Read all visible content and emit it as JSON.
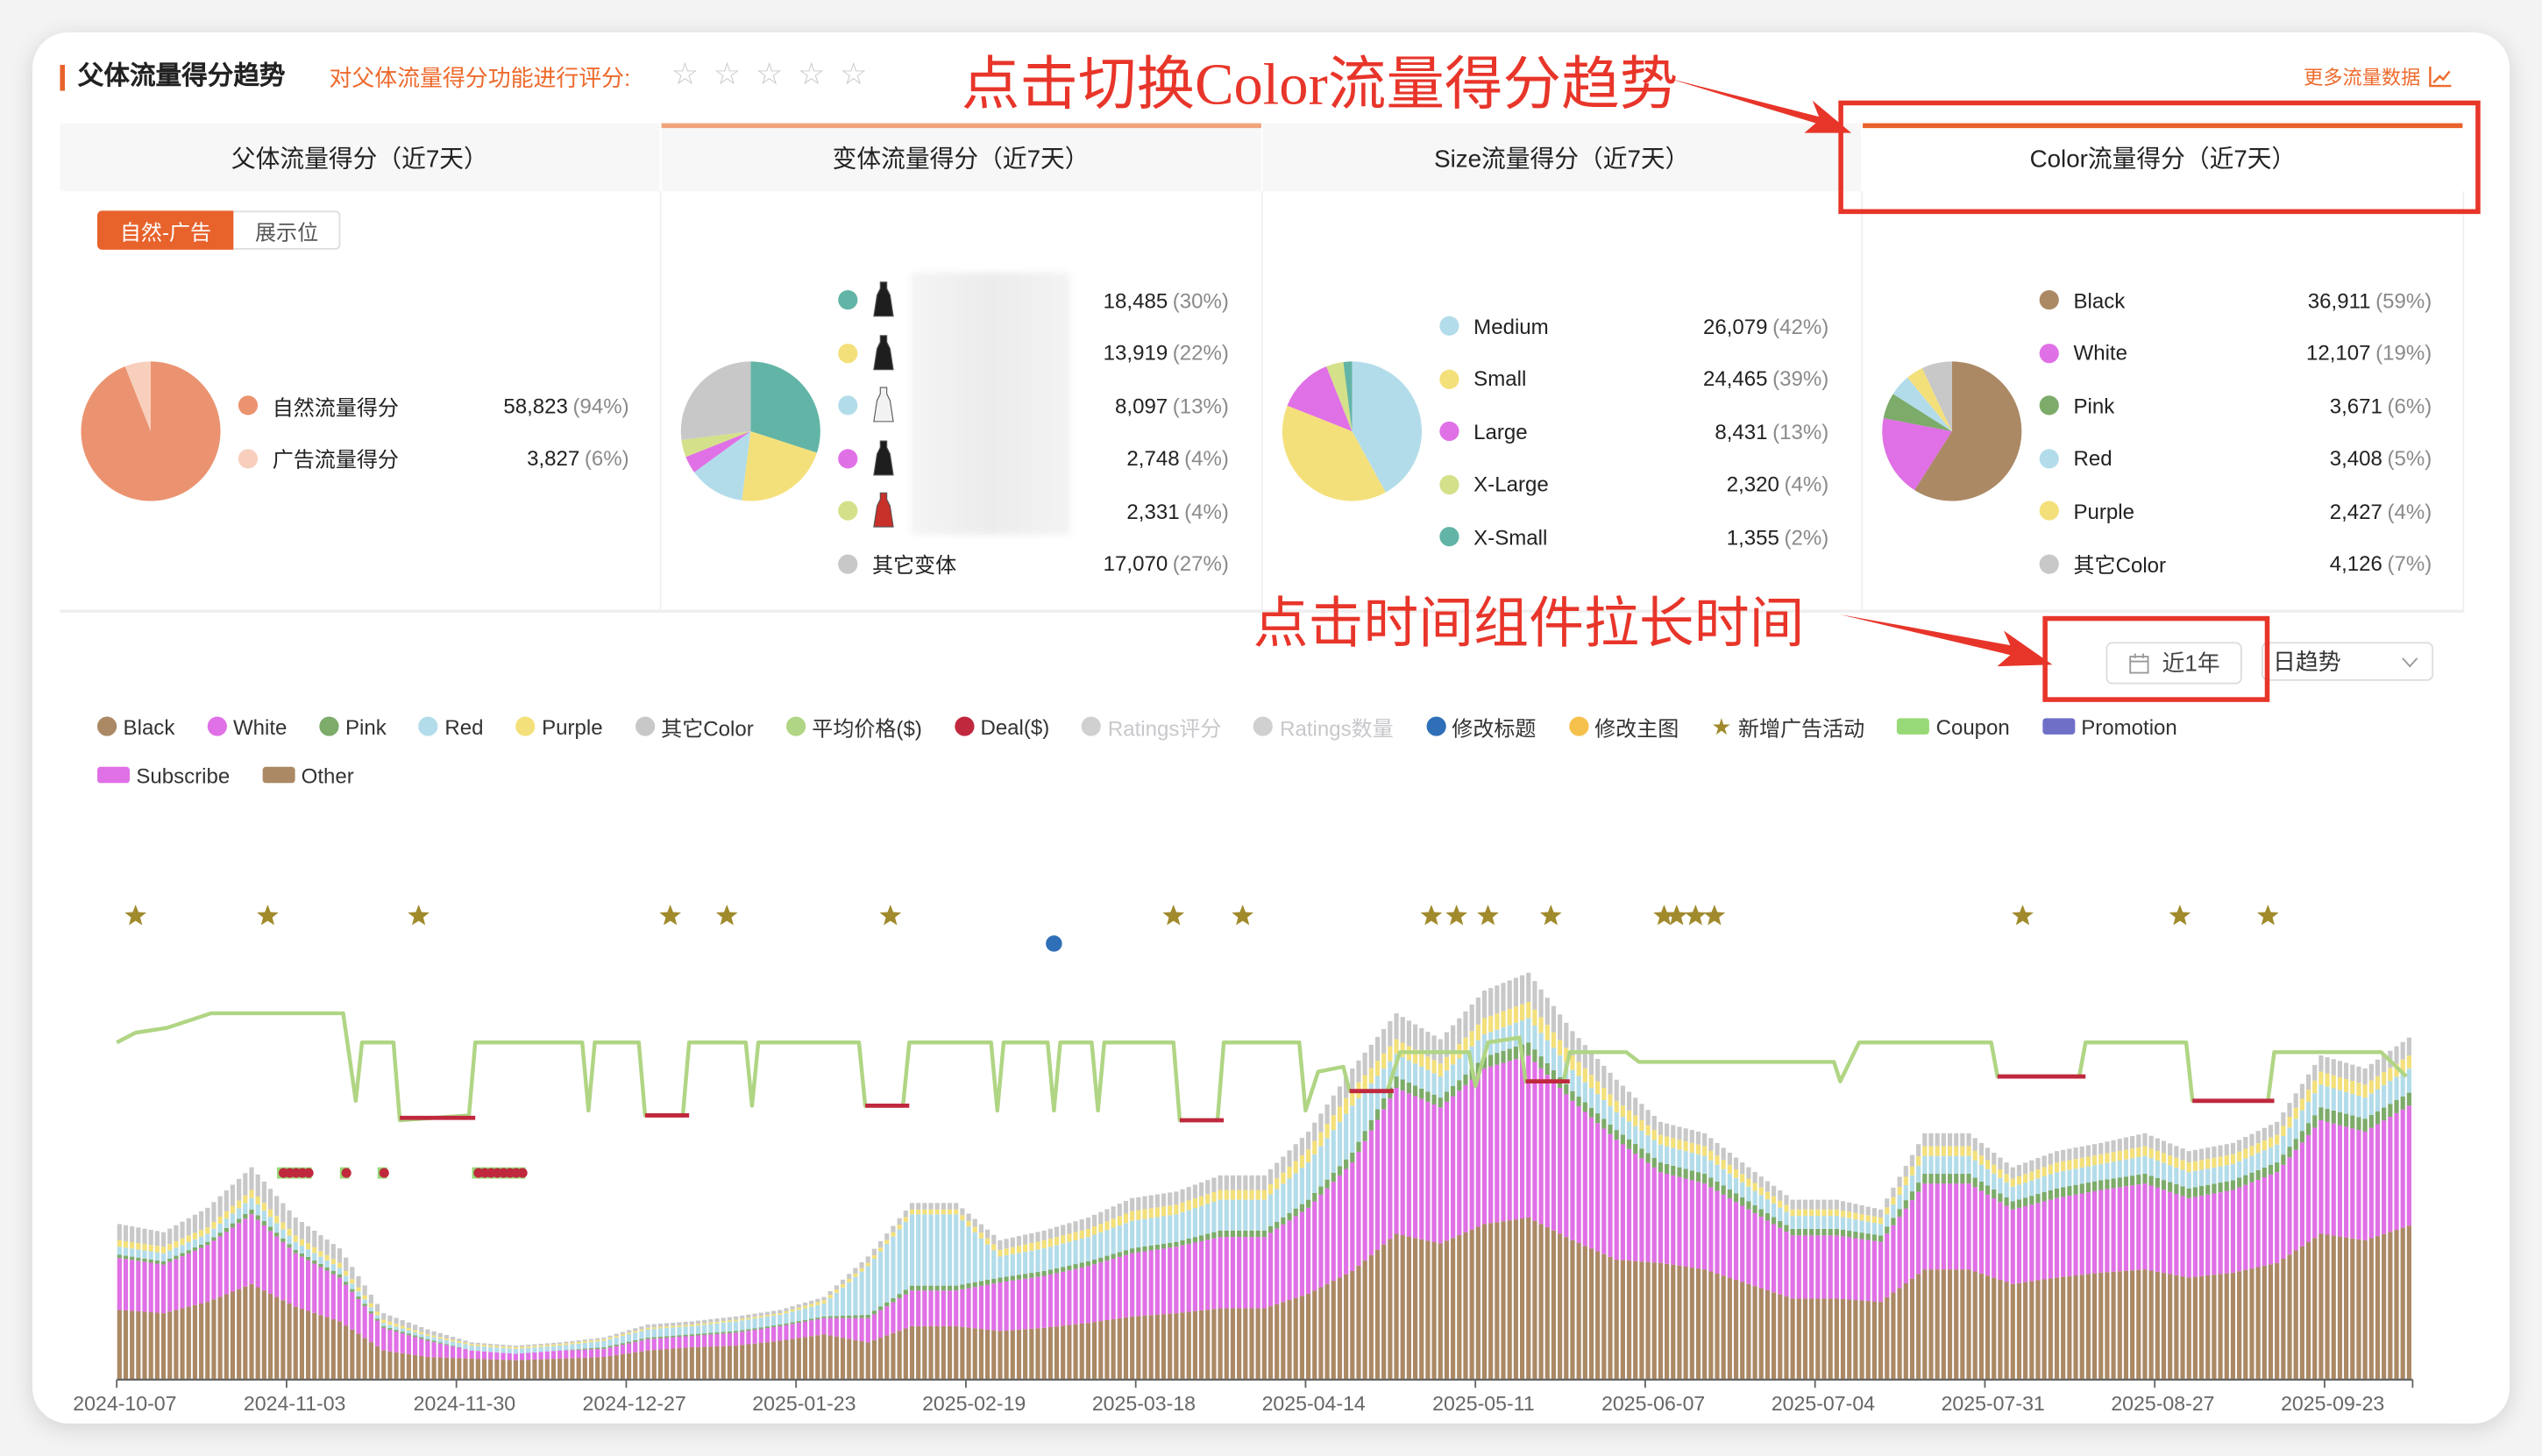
{
  "header": {
    "title": "父体流量得分趋势",
    "rating_prompt": "对父体流量得分功能进行评分:",
    "rating_stars": [
      "☆",
      "☆",
      "☆",
      "☆",
      "☆"
    ],
    "rating_value": 0,
    "more_link": "更多流量数据"
  },
  "tabs": [
    {
      "label": "父体流量得分（近7天）"
    },
    {
      "label": "变体流量得分（近7天）"
    },
    {
      "label": "Size流量得分（近7天）"
    },
    {
      "label": "Color流量得分（近7天）",
      "active": true
    }
  ],
  "toggle": {
    "options": [
      "自然-广告",
      "展示位"
    ],
    "selected": "自然-广告"
  },
  "panels": {
    "parent": [
      {
        "label": "自然流量得分",
        "value": "58,823",
        "pct": "(94%)",
        "share": 94,
        "color": "#eb9370"
      },
      {
        "label": "广告流量得分",
        "value": "3,827",
        "pct": "(6%)",
        "share": 6,
        "color": "#f8cfbd"
      }
    ],
    "variant": [
      {
        "label": "",
        "value": "18,485",
        "pct": "(30%)",
        "share": 30,
        "color": "#62b5a6",
        "thumb": "#1e1e1e"
      },
      {
        "label": "",
        "value": "13,919",
        "pct": "(22%)",
        "share": 22,
        "color": "#f4e07b",
        "thumb": "#1e1e1e"
      },
      {
        "label": "",
        "value": "8,097",
        "pct": "(13%)",
        "share": 13,
        "color": "#b3dcea",
        "thumb": "#f2f2f2"
      },
      {
        "label": "",
        "value": "2,748",
        "pct": "(4%)",
        "share": 4,
        "color": "#e070e6",
        "thumb": "#1e1e1e"
      },
      {
        "label": "",
        "value": "2,331",
        "pct": "(4%)",
        "share": 4,
        "color": "#d5e08a",
        "thumb": "#c8302a"
      },
      {
        "label": "其它变体",
        "value": "17,070",
        "pct": "(27%)",
        "share": 27,
        "color": "#c8c8c8"
      }
    ],
    "size": [
      {
        "label": "Medium",
        "value": "26,079",
        "pct": "(42%)",
        "share": 42,
        "color": "#b3dcea"
      },
      {
        "label": "Small",
        "value": "24,465",
        "pct": "(39%)",
        "share": 39,
        "color": "#f4e07b"
      },
      {
        "label": "Large",
        "value": "8,431",
        "pct": "(13%)",
        "share": 13,
        "color": "#e070e6"
      },
      {
        "label": "X-Large",
        "value": "2,320",
        "pct": "(4%)",
        "share": 4,
        "color": "#d5e08a"
      },
      {
        "label": "X-Small",
        "value": "1,355",
        "pct": "(2%)",
        "share": 2,
        "color": "#62b5a6"
      }
    ],
    "color": [
      {
        "label": "Black",
        "value": "36,911",
        "pct": "(59%)",
        "share": 59,
        "color": "#ab8965"
      },
      {
        "label": "White",
        "value": "12,107",
        "pct": "(19%)",
        "share": 19,
        "color": "#e070e6"
      },
      {
        "label": "Pink",
        "value": "3,671",
        "pct": "(6%)",
        "share": 6,
        "color": "#7dab6a"
      },
      {
        "label": "Red",
        "value": "3,408",
        "pct": "(5%)",
        "share": 5,
        "color": "#b3dcea"
      },
      {
        "label": "Purple",
        "value": "2,427",
        "pct": "(4%)",
        "share": 4,
        "color": "#f4e07b"
      },
      {
        "label": "其它Color",
        "value": "4,126",
        "pct": "(7%)",
        "share": 7,
        "color": "#c8c8c8"
      }
    ]
  },
  "annotations": {
    "switch_hint": "点击切换Color流量得分趋势",
    "time_hint": "点击时间组件拉长时间",
    "color": "#e8352a"
  },
  "controls": {
    "date_range": "近1年",
    "granularity": "日趋势"
  },
  "chart_legend": [
    {
      "label": "Black",
      "color": "#ab8965",
      "shape": "dot"
    },
    {
      "label": "White",
      "color": "#e070e6",
      "shape": "dot"
    },
    {
      "label": "Pink",
      "color": "#7dab6a",
      "shape": "dot"
    },
    {
      "label": "Red",
      "color": "#b3dcea",
      "shape": "dot"
    },
    {
      "label": "Purple",
      "color": "#f4e07b",
      "shape": "dot"
    },
    {
      "label": "其它Color",
      "color": "#c8c8c8",
      "shape": "dot"
    },
    {
      "label": "平均价格($)",
      "color": "#b0d584",
      "shape": "dot"
    },
    {
      "label": "Deal($)",
      "color": "#c0283e",
      "shape": "dot"
    },
    {
      "label": "Ratings评分",
      "color": "#d0d0d0",
      "shape": "dot",
      "disabled": true
    },
    {
      "label": "Ratings数量",
      "color": "#d0d0d0",
      "shape": "dot",
      "disabled": true
    },
    {
      "label": "修改标题",
      "color": "#2f6fb8",
      "shape": "dot"
    },
    {
      "label": "修改主图",
      "color": "#f5c04c",
      "shape": "dot"
    },
    {
      "label": "新增广告活动",
      "color": "#a08a2c",
      "shape": "star"
    },
    {
      "label": "Coupon",
      "color": "#98d977",
      "shape": "rect"
    },
    {
      "label": "Promotion",
      "color": "#6f6fc8",
      "shape": "rect"
    },
    {
      "label": "Subscribe",
      "color": "#e070e6",
      "shape": "rect"
    },
    {
      "label": "Other",
      "color": "#ab8965",
      "shape": "rect"
    }
  ],
  "chart_data": {
    "type": "bar",
    "stacked": true,
    "granularity": "weekly samples of daily bars",
    "x_start": "2024-10-07",
    "x_end": "2025-10-06",
    "xticks": [
      "2024-10-07",
      "2024-11-03",
      "2024-11-30",
      "2024-12-27",
      "2025-01-23",
      "2025-02-19",
      "2025-03-18",
      "2025-04-14",
      "2025-05-11",
      "2025-06-07",
      "2025-07-04",
      "2025-07-31",
      "2025-08-27",
      "2025-09-23"
    ],
    "ylim": [
      0,
      320
    ],
    "grid": false,
    "legend": "top-left",
    "series": [
      {
        "name": "Black",
        "color": "#ab8965",
        "values": [
          43,
          41,
          48,
          59,
          45,
          36,
          18,
          14,
          13,
          12,
          13,
          14,
          18,
          20,
          21,
          24,
          28,
          23,
          33,
          33,
          30,
          32,
          35,
          39,
          41,
          44,
          44,
          53,
          67,
          90,
          84,
          96,
          100,
          86,
          74,
          72,
          68,
          59,
          50,
          50,
          48,
          68,
          68,
          59,
          63,
          66,
          68,
          63,
          66,
          72,
          90,
          86,
          95
        ]
      },
      {
        "name": "White",
        "color": "#e070e6",
        "values": [
          32,
          30,
          35,
          43,
          33,
          27,
          14,
          10,
          5,
          4,
          5,
          5,
          7,
          7,
          8,
          9,
          10,
          15,
          22,
          22,
          30,
          32,
          35,
          39,
          41,
          44,
          44,
          53,
          67,
          90,
          84,
          96,
          100,
          86,
          74,
          56,
          53,
          46,
          39,
          39,
          37,
          53,
          53,
          46,
          49,
          51,
          53,
          49,
          51,
          56,
          70,
          67,
          74
        ]
      },
      {
        "name": "Pink",
        "color": "#7dab6a",
        "values": [
          2,
          2,
          2,
          3,
          2,
          2,
          1,
          1,
          0,
          0,
          0,
          1,
          1,
          1,
          1,
          1,
          1,
          2,
          3,
          3,
          3,
          3,
          3,
          3,
          3,
          4,
          4,
          5,
          6,
          7,
          6,
          7,
          8,
          6,
          6,
          6,
          6,
          5,
          4,
          4,
          4,
          6,
          6,
          5,
          6,
          6,
          6,
          6,
          6,
          6,
          8,
          8,
          8
        ]
      },
      {
        "name": "Red",
        "color": "#b3dcea",
        "values": [
          5,
          5,
          5,
          7,
          5,
          4,
          2,
          2,
          3,
          3,
          3,
          4,
          5,
          5,
          6,
          6,
          8,
          30,
          44,
          44,
          13,
          14,
          15,
          17,
          17,
          19,
          19,
          23,
          29,
          14,
          13,
          14,
          15,
          13,
          11,
          11,
          11,
          9,
          8,
          8,
          7,
          11,
          11,
          9,
          10,
          10,
          11,
          10,
          10,
          11,
          14,
          13,
          15
        ]
      },
      {
        "name": "Purple",
        "color": "#f4e07b",
        "values": [
          4,
          4,
          4,
          5,
          4,
          3,
          2,
          1,
          1,
          1,
          1,
          1,
          1,
          1,
          1,
          1,
          2,
          2,
          3,
          3,
          4,
          5,
          5,
          6,
          6,
          6,
          6,
          8,
          10,
          9,
          8,
          10,
          10,
          9,
          7,
          6,
          6,
          5,
          4,
          4,
          4,
          6,
          6,
          5,
          6,
          6,
          6,
          6,
          6,
          6,
          8,
          8,
          8
        ]
      },
      {
        "name": "其它Color",
        "color": "#c8c8c8",
        "values": [
          10,
          9,
          12,
          14,
          11,
          9,
          4,
          3,
          1,
          1,
          1,
          1,
          2,
          2,
          2,
          2,
          2,
          4,
          4,
          4,
          6,
          6,
          7,
          8,
          8,
          9,
          9,
          11,
          13,
          16,
          15,
          17,
          18,
          15,
          13,
          8,
          8,
          7,
          6,
          6,
          5,
          8,
          8,
          7,
          7,
          7,
          8,
          7,
          7,
          8,
          10,
          10,
          11
        ]
      }
    ],
    "price_line": {
      "name": "平均价格($)",
      "color": "#b0d584",
      "points": [
        [
          "2024-10-07",
          100
        ],
        [
          "2024-10-10",
          102
        ],
        [
          "2024-10-15",
          103
        ],
        [
          "2024-10-22",
          106
        ],
        [
          "2024-11-12",
          106
        ],
        [
          "2024-11-14",
          88
        ],
        [
          "2024-11-15",
          100
        ],
        [
          "2024-11-20",
          100
        ],
        [
          "2024-11-21",
          84
        ],
        [
          "2024-12-02",
          85
        ],
        [
          "2024-12-03",
          100
        ],
        [
          "2024-12-20",
          100
        ],
        [
          "2024-12-21",
          86
        ],
        [
          "2024-12-22",
          100
        ],
        [
          "2024-12-29",
          100
        ],
        [
          "2024-12-30",
          85
        ],
        [
          "2025-01-05",
          85
        ],
        [
          "2025-01-06",
          100
        ],
        [
          "2025-01-15",
          100
        ],
        [
          "2025-01-16",
          87
        ],
        [
          "2025-01-17",
          100
        ],
        [
          "2025-02-02",
          100
        ],
        [
          "2025-02-03",
          87
        ],
        [
          "2025-02-09",
          87
        ],
        [
          "2025-02-10",
          100
        ],
        [
          "2025-02-23",
          100
        ],
        [
          "2025-02-24",
          86
        ],
        [
          "2025-02-25",
          100
        ],
        [
          "2025-03-04",
          100
        ],
        [
          "2025-03-05",
          86
        ],
        [
          "2025-03-06",
          100
        ],
        [
          "2025-03-11",
          100
        ],
        [
          "2025-03-12",
          86
        ],
        [
          "2025-03-13",
          100
        ],
        [
          "2025-03-24",
          100
        ],
        [
          "2025-03-25",
          84
        ],
        [
          "2025-03-31",
          84
        ],
        [
          "2025-04-01",
          100
        ],
        [
          "2025-04-13",
          100
        ],
        [
          "2025-04-14",
          86
        ],
        [
          "2025-04-16",
          94
        ],
        [
          "2025-04-20",
          95
        ],
        [
          "2025-04-21",
          90
        ],
        [
          "2025-04-27",
          90
        ],
        [
          "2025-04-29",
          98
        ],
        [
          "2025-05-10",
          98
        ],
        [
          "2025-05-11",
          91
        ],
        [
          "2025-05-13",
          100
        ],
        [
          "2025-05-18",
          101
        ],
        [
          "2025-05-19",
          92
        ],
        [
          "2025-05-25",
          92
        ],
        [
          "2025-05-26",
          98
        ],
        [
          "2025-06-04",
          98
        ],
        [
          "2025-06-06",
          96
        ],
        [
          "2025-07-07",
          96
        ],
        [
          "2025-07-08",
          92
        ],
        [
          "2025-07-11",
          100
        ],
        [
          "2025-08-01",
          100
        ],
        [
          "2025-08-02",
          93
        ],
        [
          "2025-08-15",
          93
        ],
        [
          "2025-08-16",
          100
        ],
        [
          "2025-09-01",
          100
        ],
        [
          "2025-09-02",
          88
        ],
        [
          "2025-09-14",
          88
        ],
        [
          "2025-09-15",
          98
        ],
        [
          "2025-10-02",
          98
        ],
        [
          "2025-10-06",
          93
        ]
      ]
    },
    "deal_segments": {
      "name": "Deal($)",
      "color": "#c0283e",
      "periods": [
        [
          "2024-11-21",
          "2024-12-02",
          84.5
        ],
        [
          "2024-12-30",
          "2025-01-05",
          85
        ],
        [
          "2025-02-03",
          "2025-02-09",
          87
        ],
        [
          "2025-03-25",
          "2025-03-31",
          84
        ],
        [
          "2025-04-21",
          "2025-04-27",
          90
        ],
        [
          "2025-05-19",
          "2025-05-25",
          92
        ],
        [
          "2025-08-02",
          "2025-08-15",
          93
        ],
        [
          "2025-09-02",
          "2025-09-14",
          88
        ]
      ]
    },
    "ad_campaign_events": [
      "2024-10-10",
      "2024-10-31",
      "2024-11-24",
      "2025-01-03",
      "2025-01-12",
      "2025-02-07",
      "2025-03-24",
      "2025-04-04",
      "2025-05-04",
      "2025-05-08",
      "2025-05-13",
      "2025-05-23",
      "2025-06-10",
      "2025-06-12",
      "2025-06-15",
      "2025-06-18",
      "2025-08-06",
      "2025-08-31",
      "2025-09-14"
    ],
    "title_change_events": [
      "2025-03-05"
    ],
    "coupon_periods": [
      [
        "2024-11-02",
        "2024-11-06"
      ],
      [
        "2024-11-12",
        "2024-11-12"
      ],
      [
        "2024-11-18",
        "2024-11-18"
      ],
      [
        "2024-12-03",
        "2024-12-10"
      ]
    ]
  }
}
